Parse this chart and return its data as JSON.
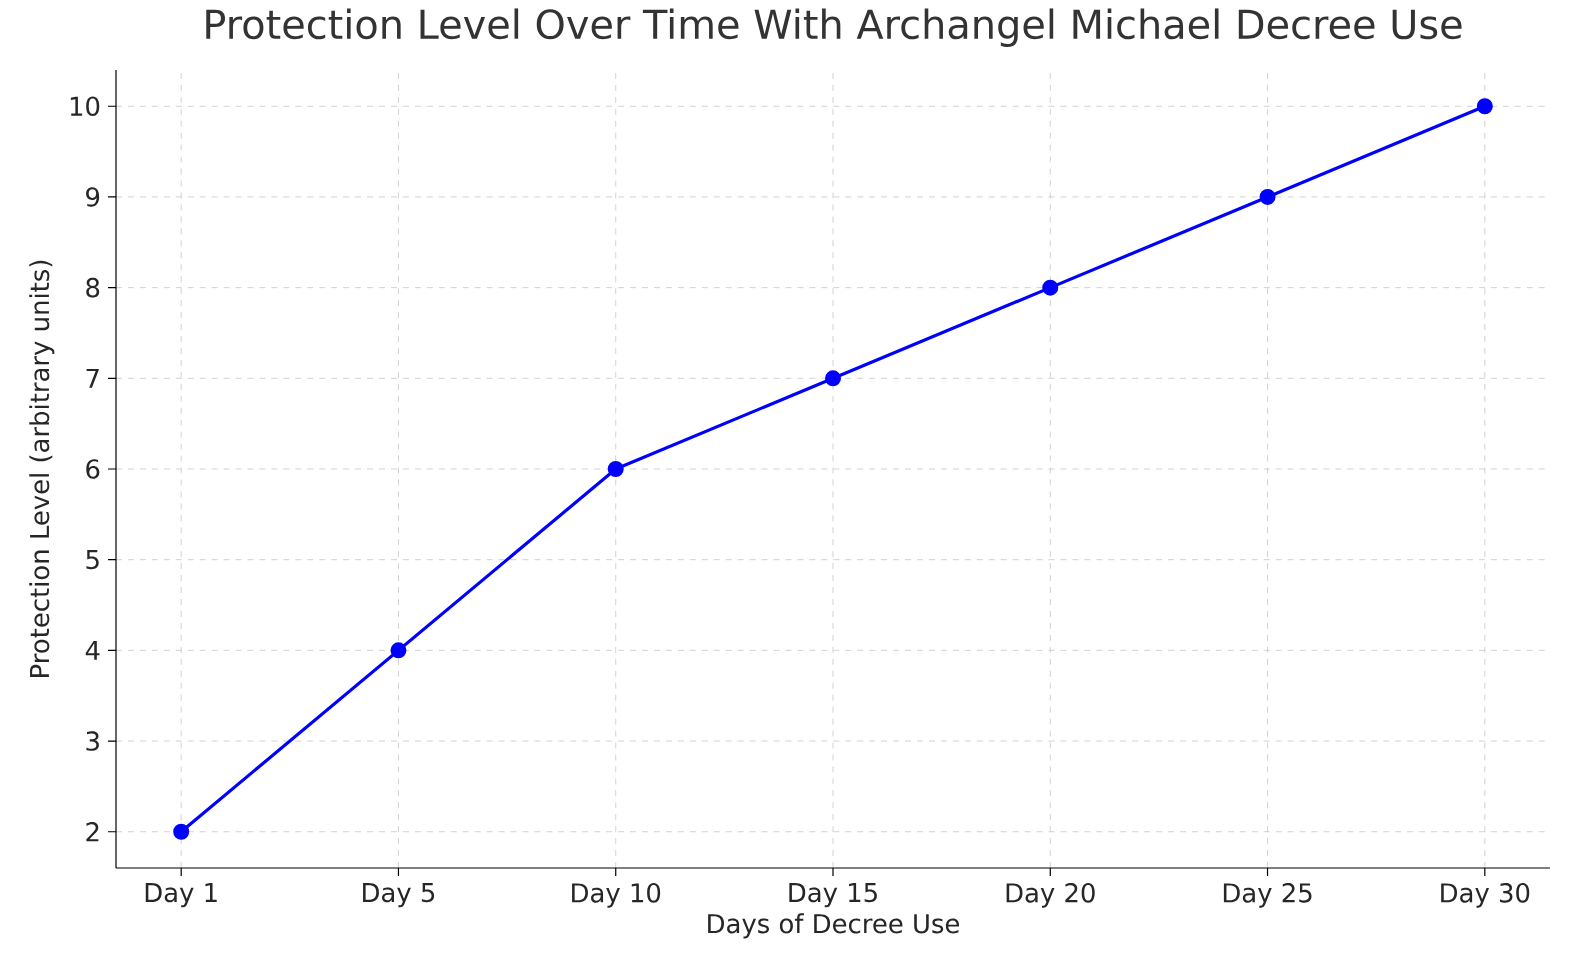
{
  "chart_data": {
    "type": "line",
    "title": "Protection Level Over Time With Archangel Michael Decree Use",
    "xlabel": "Days of Decree Use",
    "ylabel": "Protection Level (arbitrary units)",
    "categories": [
      "Day 1",
      "Day 5",
      "Day 10",
      "Day 15",
      "Day 20",
      "Day 25",
      "Day 30"
    ],
    "values": [
      2,
      4,
      6,
      7,
      8,
      9,
      10
    ],
    "color": "#0000ff",
    "marker": "circle",
    "line_style": "solid",
    "ylim": [
      1.6,
      10.4
    ],
    "yticks": [
      2,
      3,
      4,
      5,
      6,
      7,
      8,
      9,
      10
    ],
    "grid": true
  }
}
